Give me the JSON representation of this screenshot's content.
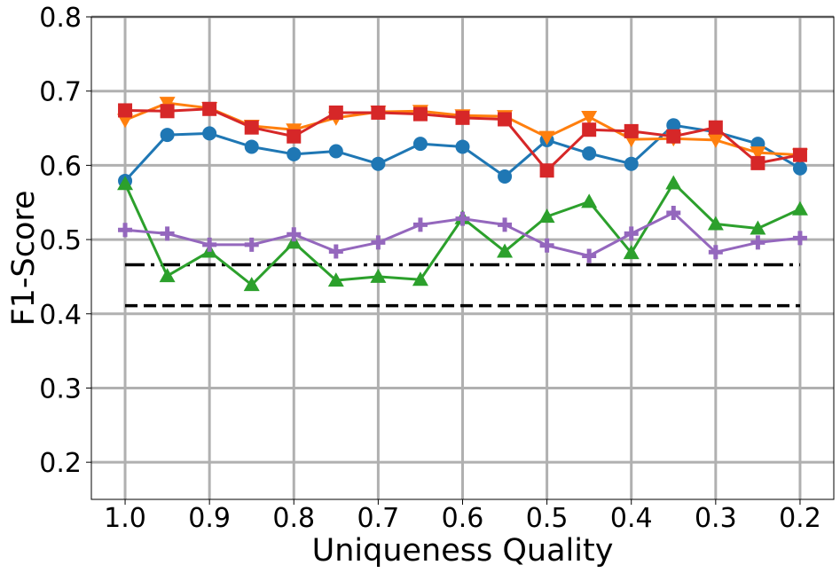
{
  "chart_data": {
    "type": "line",
    "title": "",
    "xlabel": "Uniqueness Quality",
    "ylabel": "F1-Score",
    "xlim": [
      1.04,
      0.16
    ],
    "ylim": [
      0.15,
      0.8
    ],
    "x_reversed": true,
    "grid": true,
    "x_ticks": [
      1.0,
      0.9,
      0.8,
      0.7,
      0.6,
      0.5,
      0.4,
      0.3,
      0.2
    ],
    "x_tick_labels": [
      "1.0",
      "0.9",
      "0.8",
      "0.7",
      "0.6",
      "0.5",
      "0.4",
      "0.3",
      "0.2"
    ],
    "y_ticks": [
      0.2,
      0.3,
      0.4,
      0.5,
      0.6,
      0.7,
      0.8
    ],
    "y_tick_labels": [
      "0.2",
      "0.3",
      "0.4",
      "0.5",
      "0.6",
      "0.7",
      "0.8"
    ],
    "x": [
      1.0,
      0.95,
      0.9,
      0.85,
      0.8,
      0.75,
      0.7,
      0.65,
      0.6,
      0.55,
      0.5,
      0.45,
      0.4,
      0.35,
      0.3,
      0.25,
      0.2
    ],
    "series": [
      {
        "color": "#1f77b4",
        "marker": "circle",
        "values": [
          0.579,
          0.641,
          0.643,
          0.625,
          0.615,
          0.619,
          0.602,
          0.629,
          0.625,
          0.585,
          0.634,
          0.616,
          0.602,
          0.654,
          0.645,
          0.629,
          0.596
        ]
      },
      {
        "color": "#ff7f0e",
        "marker": "triangle-down",
        "values": [
          0.661,
          0.684,
          0.677,
          0.653,
          0.648,
          0.664,
          0.672,
          0.673,
          0.667,
          0.666,
          0.638,
          0.665,
          0.635,
          0.636,
          0.634,
          0.617,
          0.614
        ]
      },
      {
        "color": "#2ca02c",
        "marker": "triangle-up",
        "values": [
          0.575,
          0.451,
          0.484,
          0.439,
          0.496,
          0.445,
          0.45,
          0.446,
          0.529,
          0.484,
          0.531,
          0.551,
          0.482,
          0.576,
          0.521,
          0.515,
          0.541
        ]
      },
      {
        "color": "#d62728",
        "marker": "square",
        "values": [
          0.674,
          0.673,
          0.676,
          0.651,
          0.639,
          0.671,
          0.671,
          0.669,
          0.664,
          0.662,
          0.593,
          0.648,
          0.646,
          0.639,
          0.651,
          0.603,
          0.614
        ]
      },
      {
        "color": "#9467bd",
        "marker": "plus",
        "values": [
          0.513,
          0.508,
          0.493,
          0.493,
          0.507,
          0.484,
          0.496,
          0.52,
          0.528,
          0.52,
          0.492,
          0.478,
          0.508,
          0.536,
          0.483,
          0.496,
          0.502
        ]
      }
    ],
    "reference_lines": [
      {
        "y": 0.466,
        "style": "dashdot",
        "color": "#000000",
        "x_range": [
          1.0,
          0.2
        ]
      },
      {
        "y": 0.411,
        "style": "dashed",
        "color": "#000000",
        "x_range": [
          1.0,
          0.2
        ]
      }
    ]
  }
}
